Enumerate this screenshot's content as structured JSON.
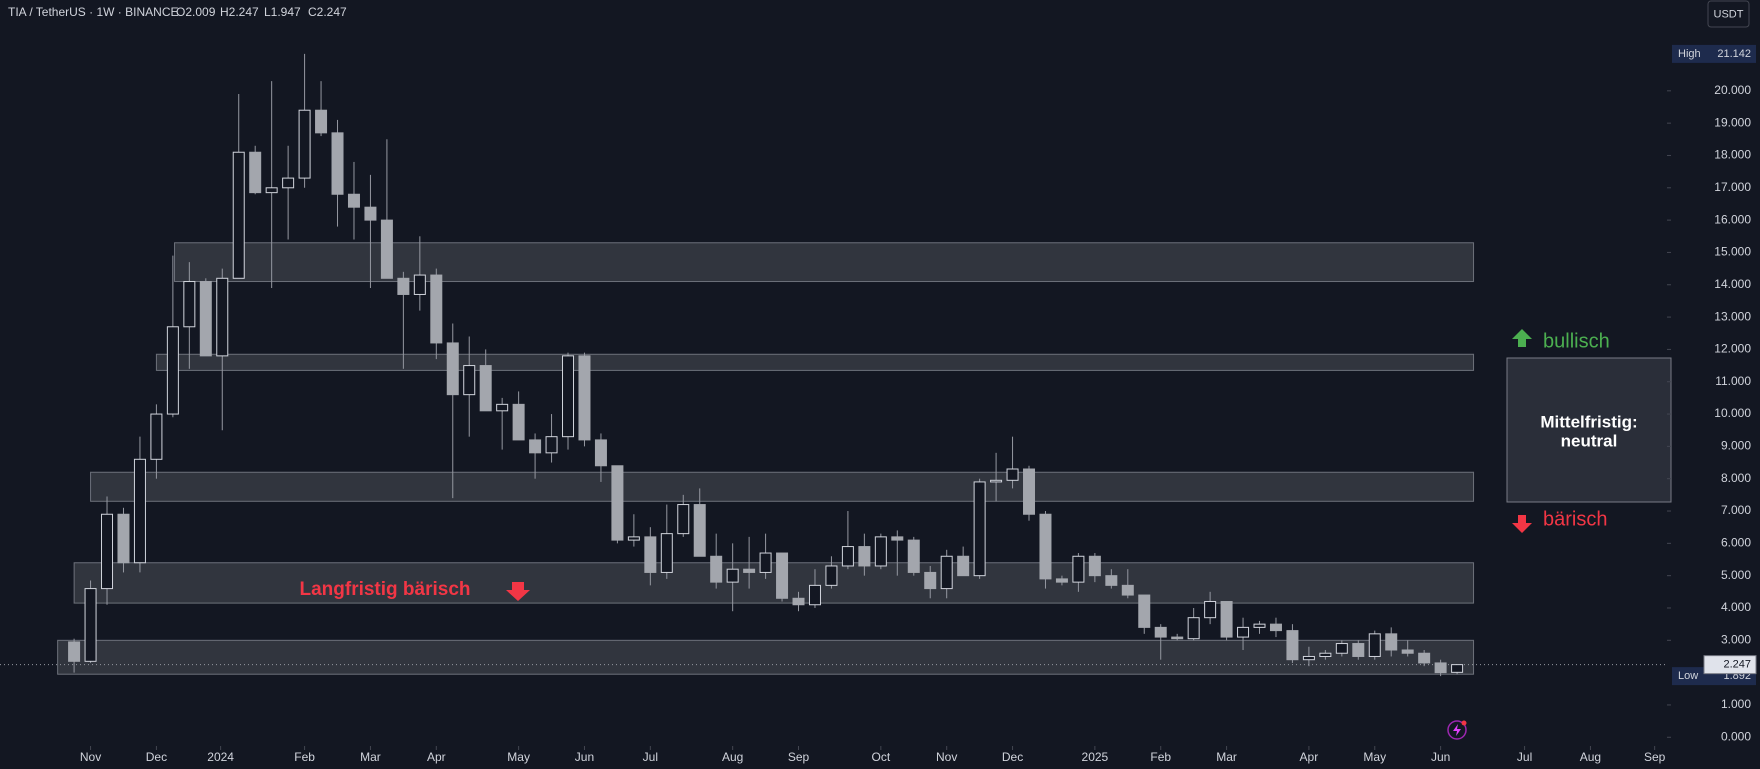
{
  "chart_data": {
    "type": "candlestick",
    "header": {
      "symbol": "TIA / TetherUS · 1W · BINANCE",
      "open": "O2.009",
      "high": "H2.247",
      "low": "L1.947",
      "close": "C2.247"
    },
    "currency_button": "USDT",
    "open": [
      2.95,
      2.35,
      4.6,
      6.9,
      5.4,
      8.6,
      10.0,
      12.7,
      14.1,
      11.8,
      14.2,
      18.1,
      16.85,
      17.0,
      17.3,
      19.4,
      18.7,
      16.8,
      16.4,
      16.0,
      14.2,
      13.7,
      14.3,
      12.2,
      10.6,
      11.5,
      10.1,
      10.3,
      9.2,
      8.8,
      9.3,
      11.8,
      9.2,
      8.4,
      6.1,
      6.2,
      5.1,
      6.3,
      7.2,
      5.6,
      4.8,
      5.2,
      5.1,
      5.7,
      4.3,
      4.1,
      4.7,
      5.3,
      5.9,
      5.3,
      6.2,
      6.1,
      5.1,
      4.6,
      5.6,
      5.0,
      7.9,
      7.95,
      8.3,
      6.9,
      4.9,
      4.8,
      5.6,
      5.0,
      4.7,
      4.4,
      3.4,
      3.1,
      3.05,
      3.7,
      4.2,
      3.1,
      3.4,
      3.5,
      3.3,
      2.4,
      2.5,
      2.6,
      2.9,
      2.5,
      3.2,
      2.7,
      2.6,
      2.3,
      2.009
    ],
    "high": [
      3.05,
      4.85,
      7.45,
      7.1,
      9.3,
      10.3,
      14.9,
      14.7,
      14.2,
      14.5,
      19.9,
      18.3,
      20.3,
      18.3,
      21.142,
      20.3,
      19.1,
      17.8,
      17.4,
      18.5,
      14.4,
      15.5,
      14.5,
      12.8,
      12.4,
      12.0,
      10.5,
      10.7,
      9.4,
      10.0,
      11.9,
      11.9,
      9.4,
      8.4,
      6.9,
      6.5,
      7.2,
      7.5,
      7.7,
      6.3,
      6.0,
      6.2,
      6.3,
      5.7,
      4.5,
      5.2,
      5.6,
      7.0,
      6.3,
      6.3,
      6.4,
      6.2,
      5.3,
      5.8,
      5.9,
      8.0,
      8.8,
      9.3,
      8.4,
      7.0,
      5.0,
      5.7,
      5.7,
      5.2,
      5.2,
      4.4,
      3.5,
      3.2,
      4.0,
      4.5,
      4.2,
      3.7,
      3.6,
      3.7,
      3.5,
      2.8,
      2.7,
      3.0,
      3.0,
      3.3,
      3.4,
      3.0,
      2.7,
      2.4,
      2.247
    ],
    "low": [
      2.0,
      2.3,
      4.1,
      5.1,
      5.1,
      8.0,
      9.9,
      11.4,
      11.8,
      9.5,
      14.2,
      16.8,
      13.9,
      15.4,
      17.0,
      18.6,
      15.8,
      15.4,
      13.9,
      14.2,
      11.4,
      13.2,
      11.7,
      7.4,
      9.3,
      10.1,
      8.9,
      9.2,
      8.0,
      8.5,
      8.9,
      9.0,
      7.9,
      6.0,
      5.9,
      4.7,
      4.9,
      6.2,
      5.6,
      4.6,
      3.9,
      4.6,
      4.9,
      4.2,
      3.9,
      4.0,
      4.6,
      5.2,
      5.0,
      5.2,
      5.0,
      5.0,
      4.3,
      4.3,
      5.0,
      4.9,
      7.3,
      7.7,
      6.7,
      4.6,
      4.7,
      4.5,
      4.8,
      4.6,
      4.3,
      3.2,
      2.4,
      3.0,
      3.0,
      3.5,
      3.0,
      2.7,
      3.2,
      3.1,
      2.3,
      2.2,
      2.4,
      2.5,
      2.4,
      2.4,
      2.5,
      2.5,
      2.2,
      1.892,
      1.947
    ],
    "close": [
      2.35,
      4.6,
      6.9,
      5.4,
      8.6,
      10.0,
      12.7,
      14.1,
      11.8,
      14.2,
      18.1,
      16.85,
      17.0,
      17.3,
      19.4,
      18.7,
      16.8,
      16.4,
      16.0,
      14.2,
      13.7,
      14.3,
      12.2,
      10.6,
      11.5,
      10.1,
      10.3,
      9.2,
      8.8,
      9.3,
      11.8,
      9.2,
      8.4,
      6.1,
      6.2,
      5.1,
      6.3,
      7.2,
      5.6,
      4.8,
      5.2,
      5.1,
      5.7,
      4.3,
      4.1,
      4.7,
      5.3,
      5.9,
      5.3,
      6.2,
      6.1,
      5.1,
      4.6,
      5.6,
      5.0,
      7.9,
      7.95,
      8.3,
      6.9,
      4.9,
      4.8,
      5.6,
      5.0,
      4.7,
      4.4,
      3.4,
      3.1,
      3.05,
      3.7,
      4.2,
      3.1,
      3.4,
      3.5,
      3.3,
      2.4,
      2.5,
      2.6,
      2.9,
      2.5,
      3.2,
      2.7,
      2.6,
      2.3,
      2.0,
      2.247
    ],
    "up_color": "#d1d4dc",
    "down_color": "#a3a6ad",
    "xlim": [
      -4.5,
      96.75
    ],
    "xticks": [
      {
        "value": 1.0,
        "label": "Nov"
      },
      {
        "value": 5.0,
        "label": "Dec"
      },
      {
        "value": 8.9,
        "label": "2024"
      },
      {
        "value": 14.0,
        "label": "Feb"
      },
      {
        "value": 18.0,
        "label": "Mar"
      },
      {
        "value": 22.0,
        "label": "Apr"
      },
      {
        "value": 27.0,
        "label": "May"
      },
      {
        "value": 31.0,
        "label": "Jun"
      },
      {
        "value": 35.0,
        "label": "Jul"
      },
      {
        "value": 40.0,
        "label": "Aug"
      },
      {
        "value": 44.0,
        "label": "Sep"
      },
      {
        "value": 49.0,
        "label": "Oct"
      },
      {
        "value": 53.0,
        "label": "Nov"
      },
      {
        "value": 57.0,
        "label": "Dec"
      },
      {
        "value": 62.0,
        "label": "2025"
      },
      {
        "value": 66.0,
        "label": "Feb"
      },
      {
        "value": 70.0,
        "label": "Mar"
      },
      {
        "value": 75.0,
        "label": "Apr"
      },
      {
        "value": 79.0,
        "label": "May"
      },
      {
        "value": 83.0,
        "label": "Jun"
      },
      {
        "value": 88.1,
        "label": "Jul"
      },
      {
        "value": 92.1,
        "label": "Aug"
      },
      {
        "value": 96.0,
        "label": "Sep"
      }
    ],
    "ylim": [
      -0.27,
      22.81
    ],
    "yticks": [
      {
        "value": 0,
        "label": "0.000"
      },
      {
        "value": 1,
        "label": "1.000"
      },
      {
        "value": 3,
        "label": "3.000"
      },
      {
        "value": 4,
        "label": "4.000"
      },
      {
        "value": 5,
        "label": "5.000"
      },
      {
        "value": 6,
        "label": "6.000"
      },
      {
        "value": 7,
        "label": "7.000"
      },
      {
        "value": 8,
        "label": "8.000"
      },
      {
        "value": 9,
        "label": "9.000"
      },
      {
        "value": 10,
        "label": "10.000"
      },
      {
        "value": 11,
        "label": "11.000"
      },
      {
        "value": 12,
        "label": "12.000"
      },
      {
        "value": 13,
        "label": "13.000"
      },
      {
        "value": 14,
        "label": "14.000"
      },
      {
        "value": 15,
        "label": "15.000"
      },
      {
        "value": 16,
        "label": "16.000"
      },
      {
        "value": 17,
        "label": "17.000"
      },
      {
        "value": 18,
        "label": "18.000"
      },
      {
        "value": 19,
        "label": "19.000"
      },
      {
        "value": 20,
        "label": "20.000"
      }
    ],
    "price_labels": {
      "high": {
        "label": "High",
        "value": 21.142
      },
      "low": {
        "label": "Low",
        "value": 1.892
      },
      "last": 2.247
    },
    "zones": [
      {
        "y": [
          14.1,
          15.3
        ],
        "x": [
          6.1,
          85.0
        ]
      },
      {
        "y": [
          11.35,
          11.85
        ],
        "x": [
          5.0,
          85.0
        ]
      },
      {
        "y": [
          7.3,
          8.2
        ],
        "x": [
          1.0,
          85.0
        ]
      },
      {
        "y": [
          4.15,
          5.4
        ],
        "x": [
          0.0,
          85.0
        ]
      },
      {
        "y": [
          1.95,
          3.0
        ],
        "x": [
          -1.0,
          85.0
        ]
      }
    ],
    "annotations": {
      "long_term": "Langfristig bärisch",
      "bullish": "bullisch",
      "bearish": "bärisch",
      "mid_term_title": "Mittelfristig:",
      "mid_term_value": "neutral"
    }
  }
}
